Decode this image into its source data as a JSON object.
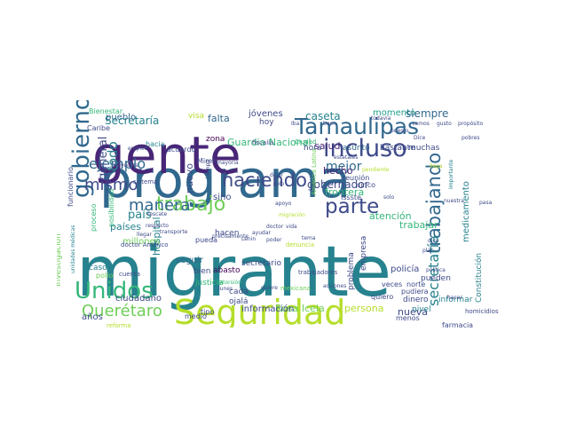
{
  "colors": {
    "background": "#ffffff",
    "palette": [
      "#440154",
      "#482677",
      "#3e4a89",
      "#31688e",
      "#26828e",
      "#1f9e89",
      "#35b779",
      "#6ece58",
      "#b5de2b",
      "#d8e219"
    ]
  },
  "words": [
    {
      "text": "migrante",
      "color": "#26828e",
      "vertical": false
    },
    {
      "text": "programa",
      "color": "#31688e",
      "vertical": false
    },
    {
      "text": "gente",
      "color": "#482677",
      "vertical": false
    },
    {
      "text": "Seguridad",
      "color": "#b5de2b",
      "vertical": false
    },
    {
      "text": "Tamaulipas",
      "color": "#31688e",
      "vertical": false
    },
    {
      "text": "incluso",
      "color": "#3e4a89",
      "vertical": false
    },
    {
      "text": "gobierno",
      "color": "#31688e",
      "vertical": true
    },
    {
      "text": "Unidos",
      "color": "#35b779",
      "vertical": false
    },
    {
      "text": "trabajo",
      "color": "#6ece58",
      "vertical": false
    },
    {
      "text": "parte",
      "color": "#3e4a89",
      "vertical": false
    },
    {
      "text": "haciendo",
      "color": "#3e4a89",
      "vertical": false
    },
    {
      "text": "trabajando",
      "color": "#31688e",
      "vertical": true
    },
    {
      "text": "Querétaro",
      "color": "#6ece58",
      "vertical": false
    },
    {
      "text": "manera",
      "color": "#31688e",
      "vertical": false
    },
    {
      "text": "mismo",
      "color": "#3e4a89",
      "vertical": false
    },
    {
      "text": "ejemplo",
      "color": "#31688e",
      "vertical": false
    },
    {
      "text": "todo",
      "color": "#26828e",
      "vertical": true
    },
    {
      "text": "Secretaría",
      "color": "#26828e",
      "vertical": false
    },
    {
      "text": "secretaría",
      "color": "#26828e",
      "vertical": true
    },
    {
      "text": "caseta",
      "color": "#26828e",
      "vertical": false
    },
    {
      "text": "mejor",
      "color": "#31688e",
      "vertical": false
    },
    {
      "text": "general",
      "color": "#3e4a89",
      "vertical": true
    },
    {
      "text": "pueblo",
      "color": "#31688e",
      "vertical": false
    },
    {
      "text": "falta",
      "color": "#31688e",
      "vertical": false
    },
    {
      "text": "jóvenes",
      "color": "#3e4a89",
      "vertical": false
    },
    {
      "text": "momento",
      "color": "#1f9e89",
      "vertical": false
    },
    {
      "text": "siempre",
      "color": "#31688e",
      "vertical": false
    },
    {
      "text": "salud",
      "color": "#482677",
      "vertical": false
    },
    {
      "text": "hora",
      "color": "#3e4a89",
      "vertical": false
    },
    {
      "text": "asunto",
      "color": "#31688e",
      "vertical": false
    },
    {
      "text": "bastante",
      "color": "#3e4a89",
      "vertical": false
    },
    {
      "text": "muchas",
      "color": "#3e4a89",
      "vertical": false
    },
    {
      "text": "país",
      "color": "#26828e",
      "vertical": false
    },
    {
      "text": "países",
      "color": "#26828e",
      "vertical": false
    },
    {
      "text": "hospital",
      "color": "#26828e",
      "vertical": true
    },
    {
      "text": "gobernador",
      "color": "#3e4a89",
      "vertical": false
    },
    {
      "text": "frontera",
      "color": "#35b779",
      "vertical": false
    },
    {
      "text": "trabajar",
      "color": "#35b779",
      "vertical": false
    },
    {
      "text": "atención",
      "color": "#35b779",
      "vertical": false
    },
    {
      "text": "hecho",
      "color": "#482677",
      "vertical": false
    },
    {
      "text": "medicamento",
      "color": "#26828e",
      "vertical": true
    },
    {
      "text": "zona",
      "color": "#440154",
      "vertical": false
    },
    {
      "text": "Guardia Nacional",
      "color": "#35b779",
      "vertical": false
    },
    {
      "text": "nuevo",
      "color": "#3e4a89",
      "vertical": true
    },
    {
      "text": "sino",
      "color": "#3e4a89",
      "vertical": false
    },
    {
      "text": "Rosa Icela",
      "color": "#6ece58",
      "vertical": false
    },
    {
      "text": "persona",
      "color": "#b5de2b",
      "vertical": false
    },
    {
      "text": "nueva",
      "color": "#3e4a89",
      "vertical": false
    },
    {
      "text": "información",
      "color": "#3e4a89",
      "vertical": false
    },
    {
      "text": "secretario",
      "color": "#3e4a89",
      "vertical": false
    },
    {
      "text": "abasto",
      "color": "#440154",
      "vertical": false
    },
    {
      "text": "problema",
      "color": "#3e4a89",
      "vertical": true
    },
    {
      "text": "empresa",
      "color": "#3e4a89",
      "vertical": true
    },
    {
      "text": "policía",
      "color": "#3e4a89",
      "vertical": false
    },
    {
      "text": "pueden",
      "color": "#3e4a89",
      "vertical": false
    },
    {
      "text": "dinero",
      "color": "#3e4a89",
      "vertical": false
    },
    {
      "text": "informar",
      "color": "#26828e",
      "vertical": false
    },
    {
      "text": "nivel",
      "color": "#26828e",
      "vertical": false
    },
    {
      "text": "menos",
      "color": "#3e4a89",
      "vertical": false
    },
    {
      "text": "Constitución",
      "color": "#26828e",
      "vertical": true
    },
    {
      "text": "farmacia",
      "color": "#3e4a89",
      "vertical": false
    },
    {
      "text": "ciudadano",
      "color": "#3e4a89",
      "vertical": false
    },
    {
      "text": "cada",
      "color": "#3e4a89",
      "vertical": false
    },
    {
      "text": "ojalá",
      "color": "#3e4a89",
      "vertical": false
    },
    {
      "text": "tipo",
      "color": "#3e4a89",
      "vertical": false
    },
    {
      "text": "medio",
      "color": "#3e4a89",
      "vertical": false
    },
    {
      "text": "años",
      "color": "#3e4a89",
      "vertical": false
    },
    {
      "text": "seguir",
      "color": "#31688e",
      "vertical": false
    },
    {
      "text": "bien",
      "color": "#3e4a89",
      "vertical": false
    },
    {
      "text": "justicia",
      "color": "#35b779",
      "vertical": false
    },
    {
      "text": "casos",
      "color": "#26828e",
      "vertical": false
    },
    {
      "text": "polio",
      "color": "#6ece58",
      "vertical": false
    },
    {
      "text": "millones",
      "color": "#6ece58",
      "vertical": false
    },
    {
      "text": "posibilidad",
      "color": "#35b779",
      "vertical": true
    },
    {
      "text": "proceso",
      "color": "#35b779",
      "vertical": true
    },
    {
      "text": "hacia",
      "color": "#26828e",
      "vertical": false
    },
    {
      "text": "acuerdo",
      "color": "#3e4a89",
      "vertical": false
    },
    {
      "text": "hacen",
      "color": "#3e4a89",
      "vertical": false
    },
    {
      "text": "pueda",
      "color": "#3e4a89",
      "vertical": false
    },
    {
      "text": "hoy",
      "color": "#3e4a89",
      "vertical": false
    },
    {
      "text": "Caribe",
      "color": "#3e4a89",
      "vertical": false
    },
    {
      "text": "Bienestar",
      "color": "#35b779",
      "vertical": false
    },
    {
      "text": "visa",
      "color": "#b5de2b",
      "vertical": false
    },
    {
      "text": "cinco",
      "color": "#3e4a89",
      "vertical": false
    },
    {
      "text": "reunión",
      "color": "#3e4a89",
      "vertical": false
    },
    {
      "text": "Issste",
      "color": "#3e4a89",
      "vertical": false
    },
    {
      "text": "veces",
      "color": "#3e4a89",
      "vertical": false
    },
    {
      "text": "norte",
      "color": "#3e4a89",
      "vertical": false
    },
    {
      "text": "pudiera",
      "color": "#3e4a89",
      "vertical": false
    },
    {
      "text": "quiero",
      "color": "#3e4a89",
      "vertical": false
    },
    {
      "text": "mexicana",
      "color": "#6ece58",
      "vertical": false
    },
    {
      "text": "Investigación",
      "color": "#6ece58",
      "vertical": true
    },
    {
      "text": "unidades médicas",
      "color": "#26828e",
      "vertical": true
    },
    {
      "text": "reforma",
      "color": "#b5de2b",
      "vertical": false
    },
    {
      "text": "Miren",
      "color": "#3e4a89",
      "vertical": false
    },
    {
      "text": "funcionario",
      "color": "#3e4a89",
      "vertical": true
    },
    {
      "text": "doctor Américo",
      "color": "#3e4a89",
      "vertical": false
    },
    {
      "text": "mayoría",
      "color": "#3e4a89",
      "vertical": false
    },
    {
      "text": "rescate",
      "color": "#3e4a89",
      "vertical": false
    },
    {
      "text": "respecto",
      "color": "#3e4a89",
      "vertical": false
    },
    {
      "text": "transporte",
      "color": "#3e4a89",
      "vertical": false
    },
    {
      "text": "llegar",
      "color": "#3e4a89",
      "vertical": false
    },
    {
      "text": "cuenta",
      "color": "#3e4a89",
      "vertical": false
    },
    {
      "text": "proyectos",
      "color": "#3e4a89",
      "vertical": false
    },
    {
      "text": "empleo",
      "color": "#3e4a89",
      "vertical": false
    },
    {
      "text": "sistema",
      "color": "#3e4a89",
      "vertical": false
    },
    {
      "text": "tiempo",
      "color": "#3e4a89",
      "vertical": true
    },
    {
      "text": "todavía",
      "color": "#3e4a89",
      "vertical": false
    },
    {
      "text": "fiscalía",
      "color": "#3e4a89",
      "vertical": false
    },
    {
      "text": "Ciudad",
      "color": "#35b779",
      "vertical": false
    },
    {
      "text": "extorsión",
      "color": "#35b779",
      "vertical": false
    },
    {
      "text": "lunes",
      "color": "#3e4a89",
      "vertical": false
    },
    {
      "text": "quiere",
      "color": "#3e4a89",
      "vertical": false
    },
    {
      "text": "trabajadores",
      "color": "#3e4a89",
      "vertical": false
    },
    {
      "text": "acciones",
      "color": "#3e4a89",
      "vertical": false
    },
    {
      "text": "dejar",
      "color": "#3e4a89",
      "vertical": false
    },
    {
      "text": "sólo",
      "color": "#3e4a89",
      "vertical": false
    },
    {
      "text": "apoyo",
      "color": "#3e4a89",
      "vertical": false
    },
    {
      "text": "solo",
      "color": "#3e4a89",
      "vertical": false
    },
    {
      "text": "dice",
      "color": "#3e4a89",
      "vertical": false
    },
    {
      "text": "plan",
      "color": "#3e4a89",
      "vertical": false
    },
    {
      "text": "política",
      "color": "#3e4a89",
      "vertical": false
    },
    {
      "text": "homicidios",
      "color": "#3e4a89",
      "vertical": false
    },
    {
      "text": "denuncia",
      "color": "#b5de2b",
      "vertical": false
    },
    {
      "text": "América Latina",
      "color": "#6ece58",
      "vertical": true
    },
    {
      "text": "migración",
      "color": "#b5de2b",
      "vertical": false
    },
    {
      "text": "hacer",
      "color": "#3e4a89",
      "vertical": false
    },
    {
      "text": "buen",
      "color": "#3e4a89",
      "vertical": false
    },
    {
      "text": "vamos",
      "color": "#3e4a89",
      "vertical": false
    },
    {
      "text": "gusto",
      "color": "#3e4a89",
      "vertical": false
    },
    {
      "text": "propósito",
      "color": "#3e4a89",
      "vertical": false
    },
    {
      "text": "importante",
      "color": "#26828e",
      "vertical": true
    },
    {
      "text": "pendiente",
      "color": "#b5de2b",
      "vertical": false
    },
    {
      "text": "estatales",
      "color": "#3e4a89",
      "vertical": false
    },
    {
      "text": "llega",
      "color": "#b5de2b",
      "vertical": false
    },
    {
      "text": "ayudar",
      "color": "#3e4a89",
      "vertical": false
    },
    {
      "text": "poder",
      "color": "#3e4a89",
      "vertical": false
    },
    {
      "text": "doctor",
      "color": "#3e4a89",
      "vertical": false
    },
    {
      "text": "vida",
      "color": "#3e4a89",
      "vertical": false
    },
    {
      "text": "precisamente",
      "color": "#3e4a89",
      "vertical": false
    },
    {
      "text": "Lenin",
      "color": "#3e4a89",
      "vertical": false
    },
    {
      "text": "tema",
      "color": "#3e4a89",
      "vertical": false
    },
    {
      "text": "nuestra",
      "color": "#3e4a89",
      "vertical": false
    },
    {
      "text": "pasa",
      "color": "#3e4a89",
      "vertical": false
    },
    {
      "text": "Iba",
      "color": "#3e4a89",
      "vertical": false
    },
    {
      "text": "pobres",
      "color": "#3e4a89",
      "vertical": false
    },
    {
      "text": "puesto",
      "color": "#3e4a89",
      "vertical": false
    },
    {
      "text": "Dice",
      "color": "#3e4a89",
      "vertical": false
    }
  ]
}
